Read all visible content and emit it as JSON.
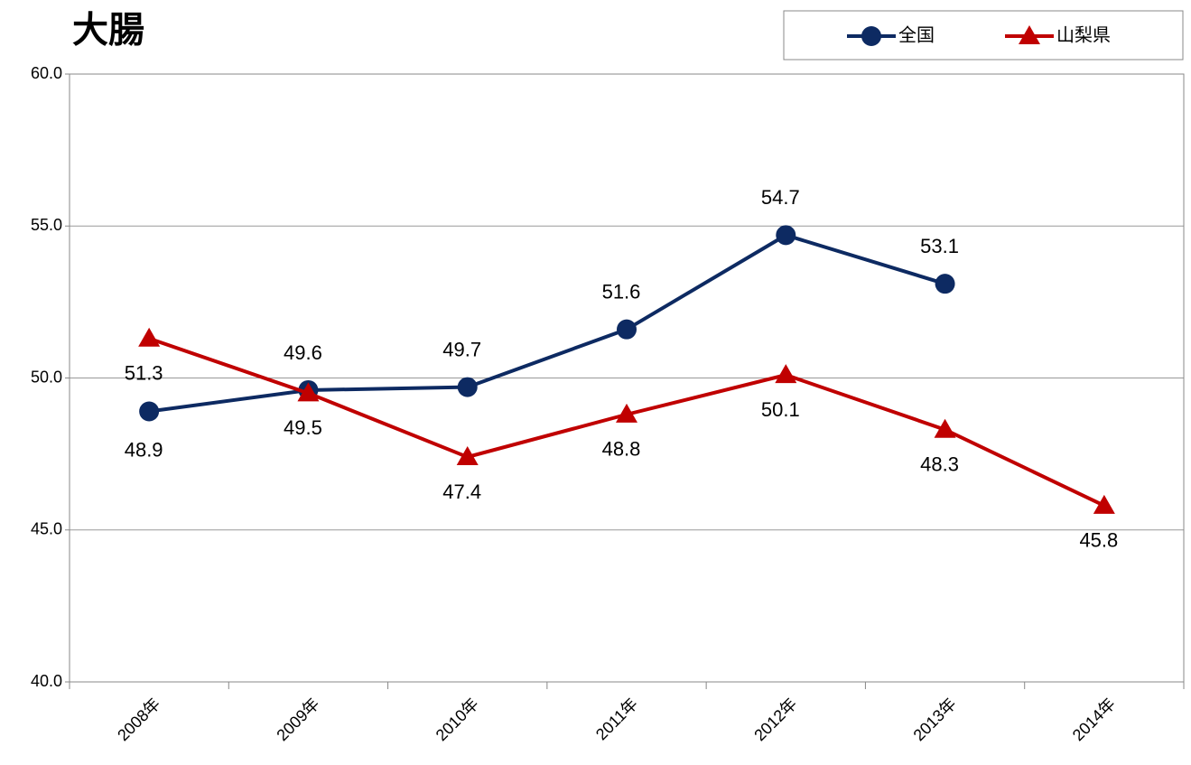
{
  "chart_data": {
    "type": "line",
    "title": "大腸",
    "categories": [
      "2008年",
      "2009年",
      "2010年",
      "2011年",
      "2012年",
      "2013年",
      "2014年"
    ],
    "series": [
      {
        "name": "全国",
        "color": "#0d2a62",
        "marker": "circle",
        "values": [
          48.9,
          49.6,
          49.7,
          51.6,
          54.7,
          53.1,
          null
        ]
      },
      {
        "name": "山梨県",
        "color": "#c00000",
        "marker": "triangle",
        "values": [
          51.3,
          49.5,
          47.4,
          48.8,
          50.1,
          48.3,
          45.8
        ]
      }
    ],
    "ylim": [
      40,
      60
    ],
    "yticks": [
      {
        "value": 40,
        "label": "40.0"
      },
      {
        "value": 45,
        "label": "45.0"
      },
      {
        "value": 50,
        "label": "50.0"
      },
      {
        "value": 55,
        "label": "55.0"
      },
      {
        "value": 60,
        "label": "60.0"
      }
    ],
    "grid": true,
    "legend": "top-right"
  }
}
